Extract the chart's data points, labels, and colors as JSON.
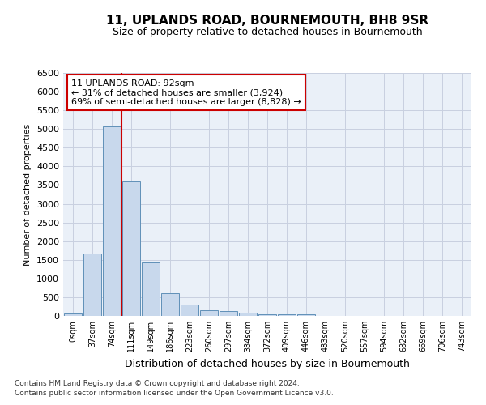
{
  "title": "11, UPLANDS ROAD, BOURNEMOUTH, BH8 9SR",
  "subtitle": "Size of property relative to detached houses in Bournemouth",
  "xlabel": "Distribution of detached houses by size in Bournemouth",
  "ylabel": "Number of detached properties",
  "bar_color": "#c8d8ec",
  "bar_edge_color": "#6090b8",
  "grid_color": "#c8d0e0",
  "background_color": "#eaf0f8",
  "categories": [
    "0sqm",
    "37sqm",
    "74sqm",
    "111sqm",
    "149sqm",
    "186sqm",
    "223sqm",
    "260sqm",
    "297sqm",
    "334sqm",
    "372sqm",
    "409sqm",
    "446sqm",
    "483sqm",
    "520sqm",
    "557sqm",
    "594sqm",
    "632sqm",
    "669sqm",
    "706sqm",
    "743sqm"
  ],
  "values": [
    70,
    1660,
    5080,
    3600,
    1420,
    610,
    300,
    155,
    120,
    95,
    50,
    50,
    50,
    5,
    0,
    0,
    0,
    0,
    0,
    0,
    0
  ],
  "ylim": [
    0,
    6500
  ],
  "yticks": [
    0,
    500,
    1000,
    1500,
    2000,
    2500,
    3000,
    3500,
    4000,
    4500,
    5000,
    5500,
    6000,
    6500
  ],
  "property_line_x": 2.5,
  "annotation_text": "11 UPLANDS ROAD: 92sqm\n← 31% of detached houses are smaller (3,924)\n69% of semi-detached houses are larger (8,828) →",
  "annotation_box_color": "#ffffff",
  "annotation_box_edge": "#cc0000",
  "property_line_color": "#cc0000",
  "footer1": "Contains HM Land Registry data © Crown copyright and database right 2024.",
  "footer2": "Contains public sector information licensed under the Open Government Licence v3.0."
}
